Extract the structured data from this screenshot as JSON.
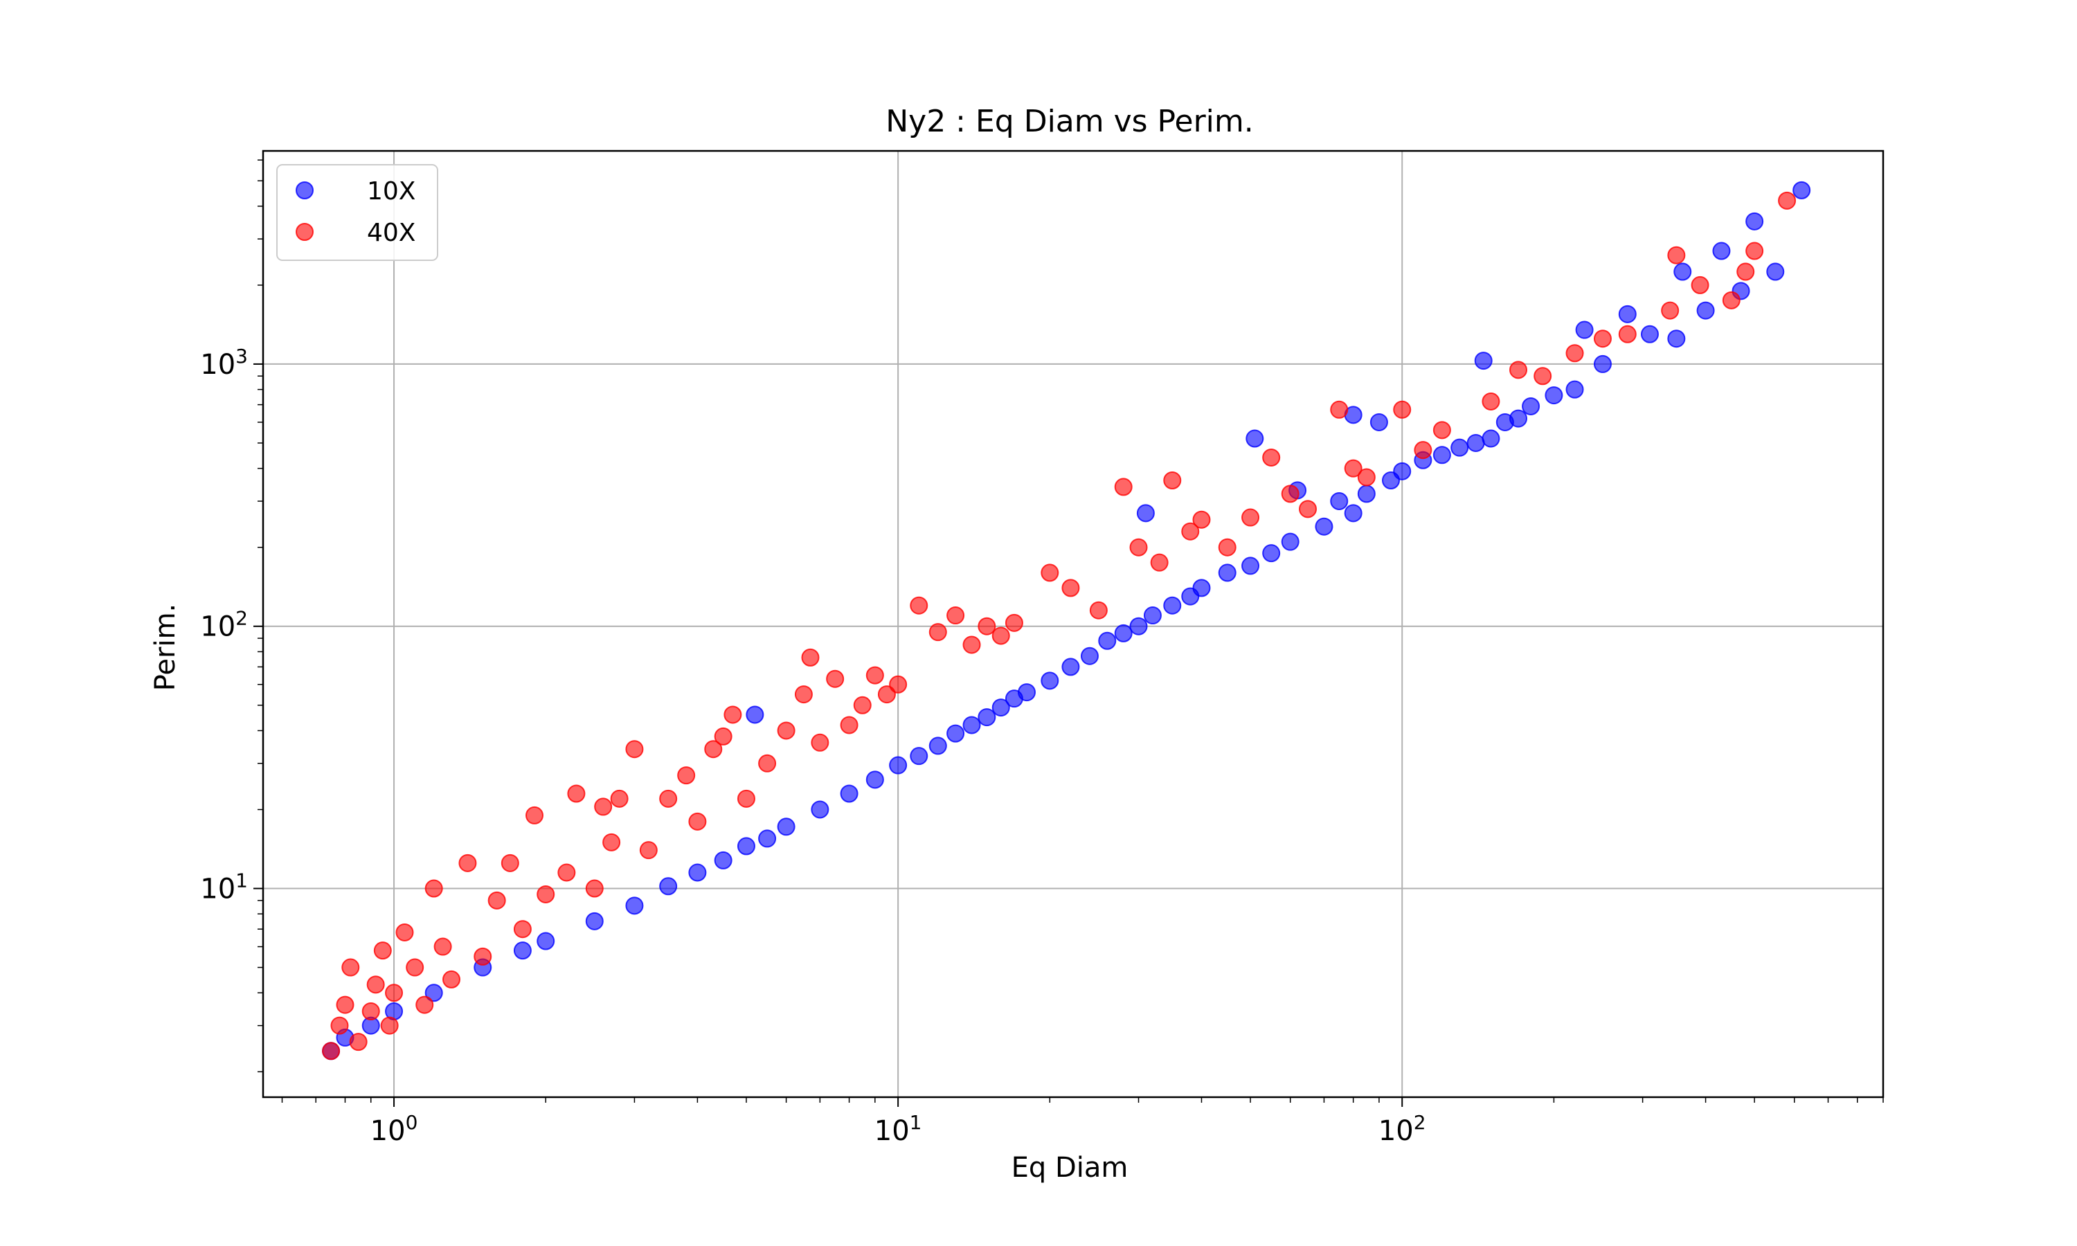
{
  "chart_data": {
    "type": "scatter",
    "title": "Ny2 : Eq Diam vs Perim.",
    "xlabel": "Eq Diam",
    "ylabel": "Perim.",
    "xscale": "log",
    "yscale": "log",
    "xlim": [
      0.55,
      900
    ],
    "ylim": [
      1.6,
      6500
    ],
    "grid": true,
    "legend_position": "upper-left",
    "x_ticks": [
      {
        "value": 1,
        "base": "10",
        "exp": "0"
      },
      {
        "value": 10,
        "base": "10",
        "exp": "1"
      },
      {
        "value": 100,
        "base": "10",
        "exp": "2"
      }
    ],
    "y_ticks": [
      {
        "value": 10,
        "base": "10",
        "exp": "1"
      },
      {
        "value": 100,
        "base": "10",
        "exp": "2"
      },
      {
        "value": 1000,
        "base": "10",
        "exp": "3"
      }
    ],
    "series": [
      {
        "name": "10X",
        "color": "#0000ff",
        "alpha": 0.6,
        "points": [
          [
            0.75,
            2.4
          ],
          [
            0.8,
            2.7
          ],
          [
            0.9,
            3.0
          ],
          [
            1.0,
            3.4
          ],
          [
            1.2,
            4.0
          ],
          [
            1.5,
            5.0
          ],
          [
            1.8,
            5.8
          ],
          [
            2.0,
            6.3
          ],
          [
            2.5,
            7.5
          ],
          [
            3.0,
            8.6
          ],
          [
            3.5,
            10.2
          ],
          [
            4.0,
            11.5
          ],
          [
            4.5,
            12.8
          ],
          [
            5.0,
            14.5
          ],
          [
            5.2,
            46.0
          ],
          [
            5.5,
            15.5
          ],
          [
            6.0,
            17.2
          ],
          [
            7.0,
            20.0
          ],
          [
            8.0,
            23.0
          ],
          [
            9.0,
            26.0
          ],
          [
            10.0,
            29.5
          ],
          [
            11.0,
            32.0
          ],
          [
            12.0,
            35.0
          ],
          [
            13.0,
            39.0
          ],
          [
            14.0,
            42.0
          ],
          [
            15.0,
            45.0
          ],
          [
            16.0,
            49.0
          ],
          [
            17.0,
            53.0
          ],
          [
            18.0,
            56.0
          ],
          [
            20.0,
            62.0
          ],
          [
            22.0,
            70.0
          ],
          [
            24.0,
            77.0
          ],
          [
            26.0,
            88.0
          ],
          [
            28.0,
            94.0
          ],
          [
            30.0,
            100.0
          ],
          [
            31.0,
            270.0
          ],
          [
            32.0,
            110.0
          ],
          [
            35.0,
            120.0
          ],
          [
            38.0,
            130.0
          ],
          [
            40.0,
            140.0
          ],
          [
            45.0,
            160.0
          ],
          [
            50.0,
            170.0
          ],
          [
            51.0,
            520.0
          ],
          [
            55.0,
            190.0
          ],
          [
            60.0,
            210.0
          ],
          [
            62.0,
            330.0
          ],
          [
            70.0,
            240.0
          ],
          [
            75.0,
            300.0
          ],
          [
            80.0,
            270.0
          ],
          [
            80.0,
            640.0
          ],
          [
            85.0,
            320.0
          ],
          [
            90.0,
            600.0
          ],
          [
            95.0,
            360.0
          ],
          [
            100.0,
            390.0
          ],
          [
            110.0,
            430.0
          ],
          [
            120.0,
            450.0
          ],
          [
            130.0,
            480.0
          ],
          [
            140.0,
            500.0
          ],
          [
            145.0,
            1030.0
          ],
          [
            150.0,
            520.0
          ],
          [
            160.0,
            600.0
          ],
          [
            170.0,
            620.0
          ],
          [
            180.0,
            690.0
          ],
          [
            200.0,
            760.0
          ],
          [
            220.0,
            800.0
          ],
          [
            230.0,
            1350.0
          ],
          [
            250.0,
            1000.0
          ],
          [
            280.0,
            1550.0
          ],
          [
            310.0,
            1300.0
          ],
          [
            350.0,
            1250.0
          ],
          [
            360.0,
            2250.0
          ],
          [
            400.0,
            1600.0
          ],
          [
            430.0,
            2700.0
          ],
          [
            470.0,
            1900.0
          ],
          [
            500.0,
            3500.0
          ],
          [
            550.0,
            2250.0
          ],
          [
            620.0,
            4600.0
          ]
        ]
      },
      {
        "name": "40X",
        "color": "#ff0000",
        "alpha": 0.6,
        "points": [
          [
            0.75,
            2.4
          ],
          [
            0.78,
            3.0
          ],
          [
            0.8,
            3.6
          ],
          [
            0.82,
            5.0
          ],
          [
            0.85,
            2.6
          ],
          [
            0.9,
            3.4
          ],
          [
            0.92,
            4.3
          ],
          [
            0.95,
            5.8
          ],
          [
            0.98,
            3.0
          ],
          [
            1.0,
            4.0
          ],
          [
            1.05,
            6.8
          ],
          [
            1.1,
            5.0
          ],
          [
            1.15,
            3.6
          ],
          [
            1.2,
            10.0
          ],
          [
            1.25,
            6.0
          ],
          [
            1.3,
            4.5
          ],
          [
            1.4,
            12.5
          ],
          [
            1.5,
            5.5
          ],
          [
            1.6,
            9.0
          ],
          [
            1.7,
            12.5
          ],
          [
            1.8,
            7.0
          ],
          [
            1.9,
            19.0
          ],
          [
            2.0,
            9.5
          ],
          [
            2.2,
            11.5
          ],
          [
            2.3,
            23.0
          ],
          [
            2.5,
            10.0
          ],
          [
            2.6,
            20.5
          ],
          [
            2.7,
            15.0
          ],
          [
            2.8,
            22.0
          ],
          [
            3.0,
            34.0
          ],
          [
            3.2,
            14.0
          ],
          [
            3.5,
            22.0
          ],
          [
            3.8,
            27.0
          ],
          [
            4.0,
            18.0
          ],
          [
            4.3,
            34.0
          ],
          [
            4.5,
            38.0
          ],
          [
            4.7,
            46.0
          ],
          [
            5.0,
            22.0
          ],
          [
            5.5,
            30.0
          ],
          [
            6.0,
            40.0
          ],
          [
            6.5,
            55.0
          ],
          [
            6.7,
            76.0
          ],
          [
            7.0,
            36.0
          ],
          [
            7.5,
            63.0
          ],
          [
            8.0,
            42.0
          ],
          [
            8.5,
            50.0
          ],
          [
            9.0,
            65.0
          ],
          [
            9.5,
            55.0
          ],
          [
            10.0,
            60.0
          ],
          [
            11.0,
            120.0
          ],
          [
            12.0,
            95.0
          ],
          [
            13.0,
            110.0
          ],
          [
            14.0,
            85.0
          ],
          [
            15.0,
            100.0
          ],
          [
            16.0,
            92.0
          ],
          [
            17.0,
            103.0
          ],
          [
            20.0,
            160.0
          ],
          [
            22.0,
            140.0
          ],
          [
            25.0,
            115.0
          ],
          [
            28.0,
            340.0
          ],
          [
            30.0,
            200.0
          ],
          [
            33.0,
            175.0
          ],
          [
            35.0,
            360.0
          ],
          [
            38.0,
            230.0
          ],
          [
            40.0,
            255.0
          ],
          [
            45.0,
            200.0
          ],
          [
            50.0,
            260.0
          ],
          [
            55.0,
            440.0
          ],
          [
            60.0,
            320.0
          ],
          [
            65.0,
            280.0
          ],
          [
            75.0,
            670.0
          ],
          [
            80.0,
            400.0
          ],
          [
            85.0,
            370.0
          ],
          [
            100.0,
            670.0
          ],
          [
            110.0,
            470.0
          ],
          [
            120.0,
            560.0
          ],
          [
            150.0,
            720.0
          ],
          [
            170.0,
            950.0
          ],
          [
            190.0,
            900.0
          ],
          [
            220.0,
            1100.0
          ],
          [
            250.0,
            1250.0
          ],
          [
            280.0,
            1300.0
          ],
          [
            340.0,
            1600.0
          ],
          [
            350.0,
            2600.0
          ],
          [
            390.0,
            2000.0
          ],
          [
            450.0,
            1750.0
          ],
          [
            480.0,
            2250.0
          ],
          [
            500.0,
            2700.0
          ],
          [
            580.0,
            4200.0
          ]
        ]
      }
    ]
  }
}
